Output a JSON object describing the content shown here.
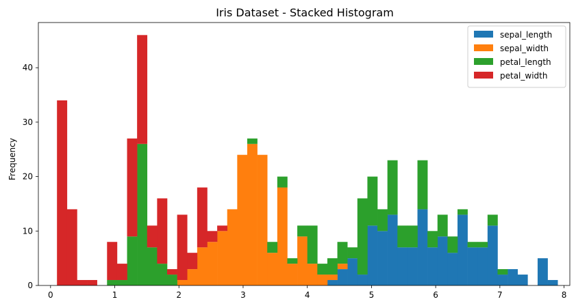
{
  "chart_data": {
    "type": "bar",
    "stacked": true,
    "title": "Iris Dataset - Stacked Histogram",
    "xlabel": "",
    "ylabel": "Frequency",
    "xlim": [
      -0.19,
      8.09
    ],
    "ylim": [
      0,
      48.3
    ],
    "xticks": [
      0,
      1,
      2,
      3,
      4,
      5,
      6,
      7,
      8
    ],
    "yticks": [
      0,
      10,
      20,
      30,
      40
    ],
    "grid": false,
    "legend_position": "top-right",
    "bins": {
      "start": 0.1,
      "width": 0.156,
      "count": 50
    },
    "series": [
      {
        "name": "sepal_length",
        "color": "#1f77b4",
        "values": [
          0,
          0,
          0,
          0,
          0,
          0,
          0,
          0,
          0,
          0,
          0,
          0,
          0,
          0,
          0,
          0,
          0,
          0,
          0,
          0,
          0,
          0,
          0,
          0,
          0,
          0,
          0,
          1,
          3,
          5,
          2,
          11,
          10,
          13,
          7,
          7,
          14,
          7,
          9,
          6,
          13,
          7,
          7,
          11,
          2,
          3,
          2,
          0,
          5,
          1
        ]
      },
      {
        "name": "sepal_width",
        "color": "#ff7f0e",
        "values": [
          0,
          0,
          0,
          0,
          0,
          0,
          0,
          0,
          0,
          0,
          0,
          0,
          1,
          3,
          7,
          8,
          10,
          14,
          24,
          26,
          24,
          6,
          18,
          4,
          9,
          4,
          2,
          1,
          1,
          0,
          0,
          0,
          0,
          0,
          0,
          0,
          0,
          0,
          0,
          0,
          0,
          0,
          0,
          0,
          0,
          0,
          0,
          0,
          0,
          0
        ]
      },
      {
        "name": "petal_length",
        "color": "#2ca02c",
        "values": [
          0,
          0,
          0,
          0,
          0,
          1,
          1,
          9,
          26,
          7,
          4,
          2,
          0,
          0,
          0,
          0,
          0,
          0,
          0,
          1,
          0,
          2,
          2,
          1,
          2,
          7,
          2,
          3,
          4,
          2,
          14,
          9,
          4,
          10,
          4,
          4,
          9,
          3,
          4,
          3,
          1,
          1,
          1,
          2,
          1,
          0,
          0,
          0,
          0,
          0
        ]
      },
      {
        "name": "petal_width",
        "color": "#d62728",
        "values": [
          34,
          14,
          1,
          1,
          0,
          7,
          3,
          18,
          20,
          4,
          12,
          1,
          12,
          3,
          11,
          2,
          1,
          0,
          0,
          0,
          0,
          0,
          0,
          0,
          0,
          0,
          0,
          0,
          0,
          0,
          0,
          0,
          0,
          0,
          0,
          0,
          0,
          0,
          0,
          0,
          0,
          0,
          0,
          0,
          0,
          0,
          0,
          0,
          0,
          0
        ]
      }
    ]
  }
}
